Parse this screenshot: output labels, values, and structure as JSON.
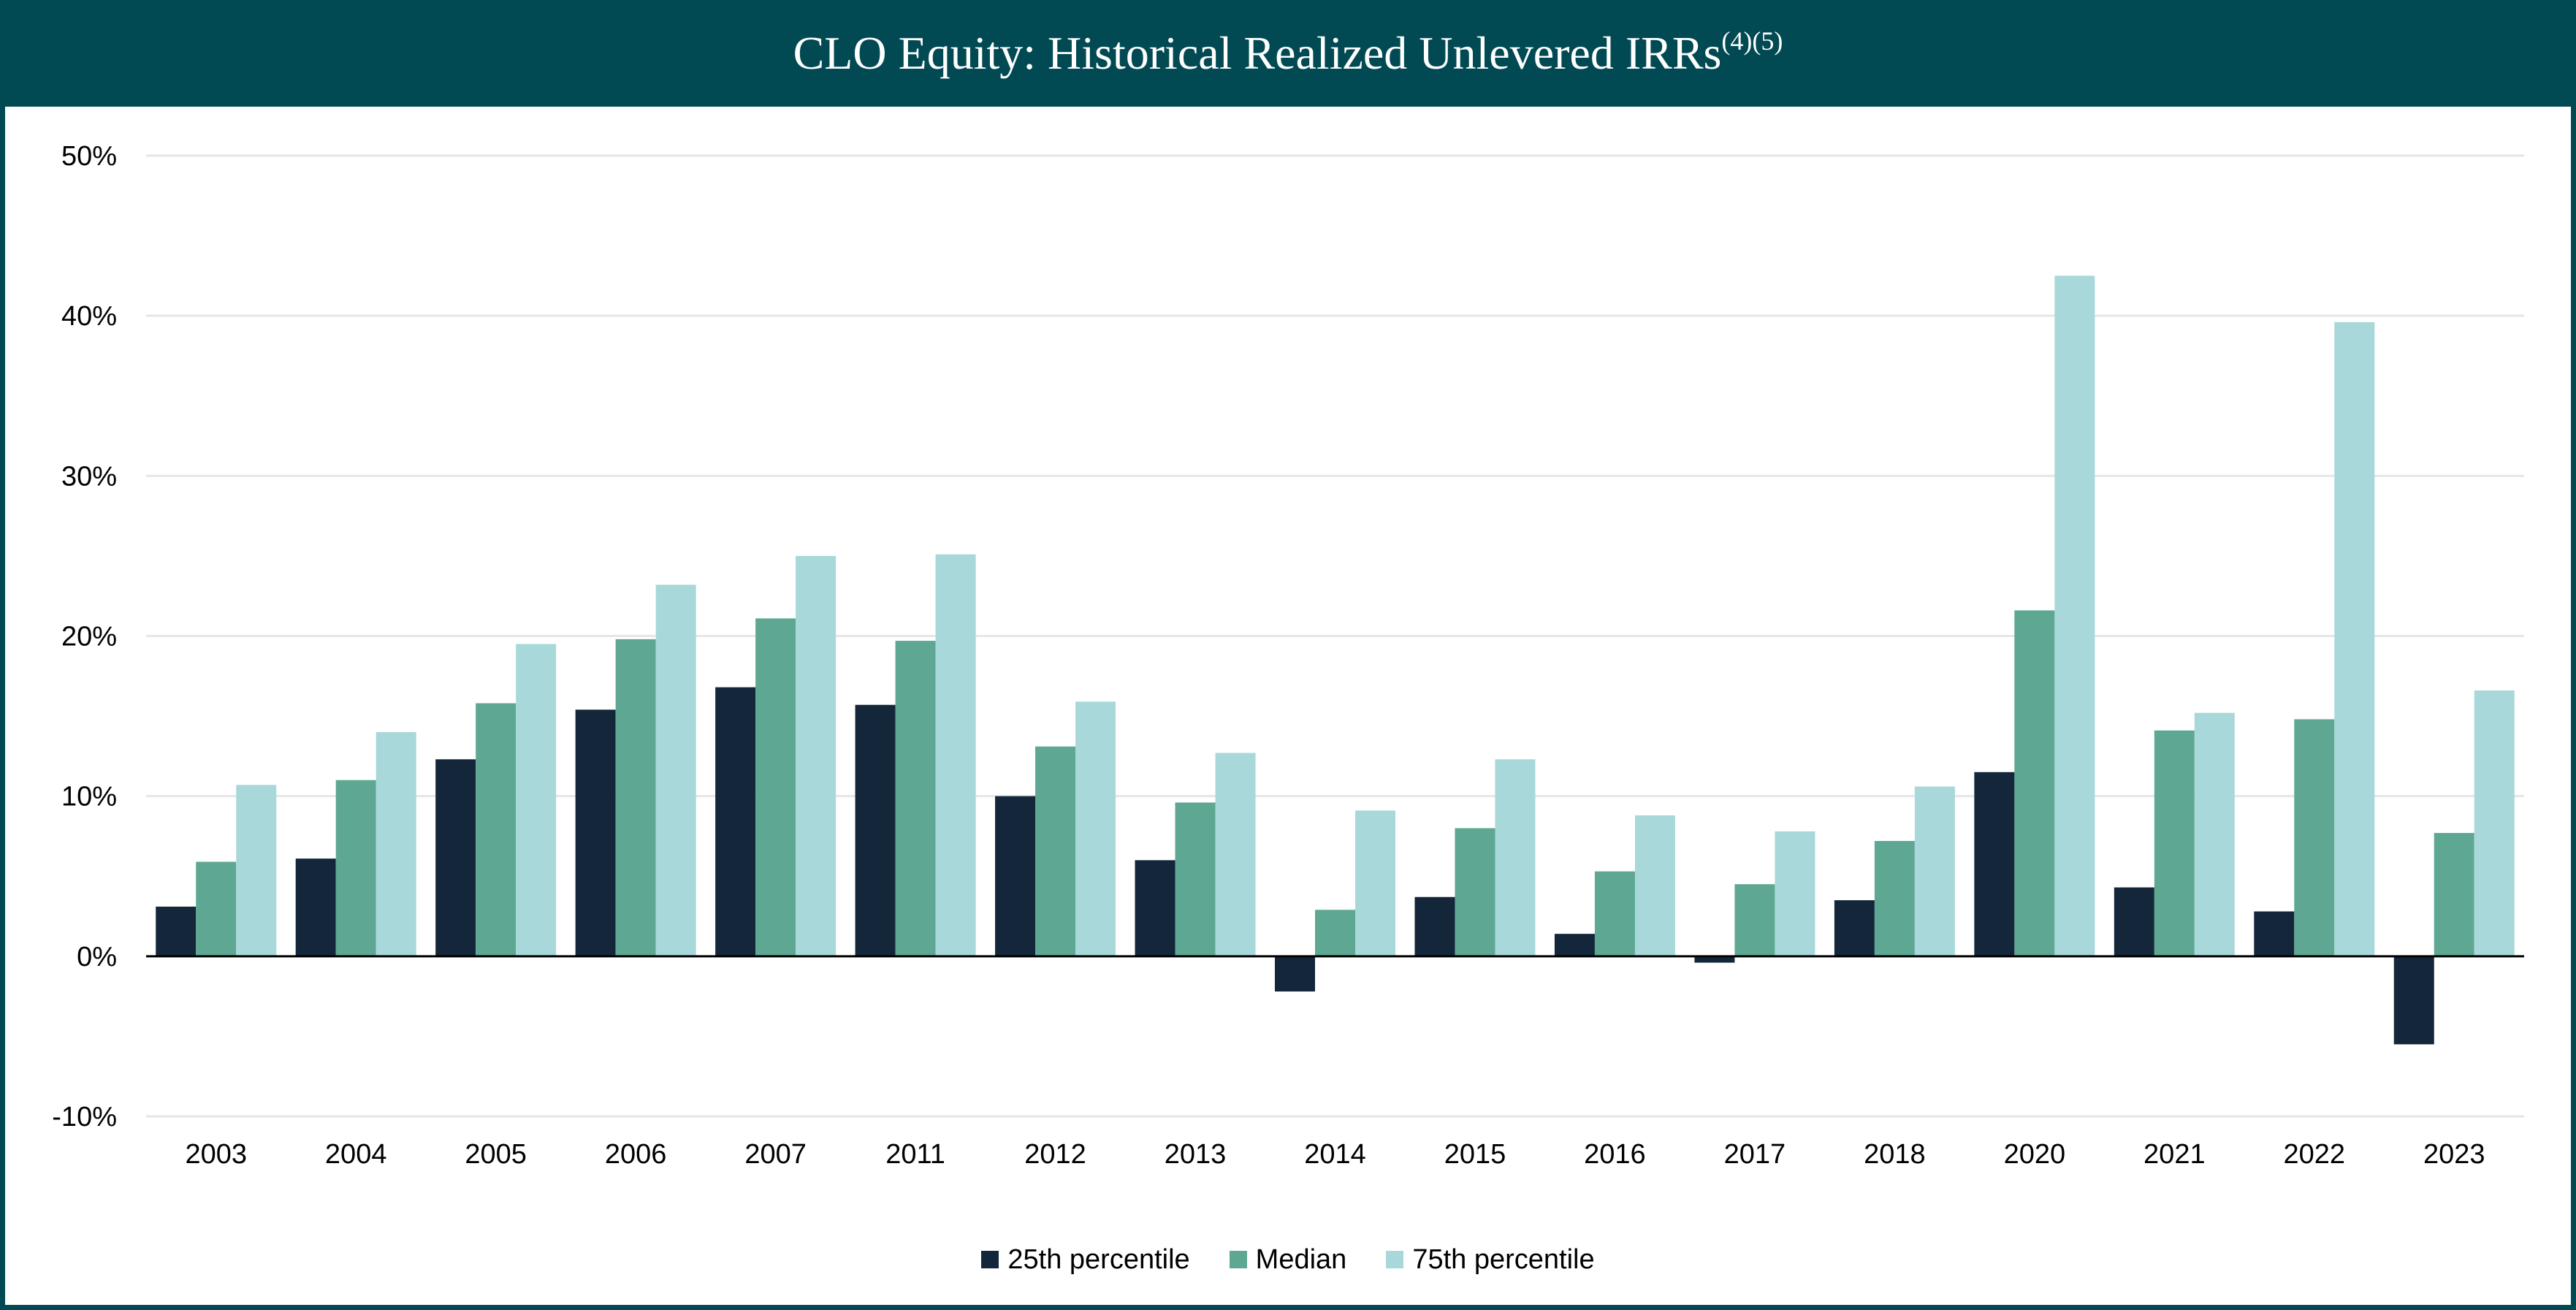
{
  "title": {
    "text": "CLO Equity: Historical Realized Unlevered IRRs",
    "superscript": "(4)(5)"
  },
  "colors": {
    "header_bg": "#024a53",
    "p25": "#13263a",
    "median": "#5ea792",
    "p75": "#a8d8da",
    "grid": "#e6e6e6",
    "axis": "#000000"
  },
  "chart_data": {
    "type": "bar",
    "title": "CLO Equity: Historical Realized Unlevered IRRs(4)(5)",
    "categories": [
      "2003",
      "2004",
      "2005",
      "2006",
      "2007",
      "2011",
      "2012",
      "2013",
      "2014",
      "2015",
      "2016",
      "2017",
      "2018",
      "2020",
      "2021",
      "2022",
      "2023"
    ],
    "series": [
      {
        "name": "25th percentile",
        "values": [
          3.1,
          6.1,
          12.3,
          15.4,
          16.8,
          15.7,
          10.0,
          6.0,
          -2.2,
          3.7,
          1.4,
          -0.4,
          3.5,
          11.5,
          4.3,
          2.8,
          -5.5
        ]
      },
      {
        "name": "Median",
        "values": [
          5.9,
          11.0,
          15.8,
          19.8,
          21.1,
          19.7,
          13.1,
          9.6,
          2.9,
          8.0,
          5.3,
          4.5,
          7.2,
          21.6,
          14.1,
          14.8,
          7.7
        ]
      },
      {
        "name": "75th percentile",
        "values": [
          10.7,
          14.0,
          19.5,
          23.2,
          25.0,
          25.1,
          15.9,
          12.7,
          9.1,
          12.3,
          8.8,
          7.8,
          10.6,
          42.5,
          15.2,
          39.6,
          16.6
        ]
      }
    ],
    "ylim": [
      -10,
      50
    ],
    "yticks": [
      -10,
      0,
      10,
      20,
      30,
      40,
      50
    ],
    "ytick_labels": [
      "-10%",
      "0%",
      "10%",
      "20%",
      "30%",
      "40%",
      "50%"
    ],
    "grid": true,
    "legend_position": "bottom-center"
  }
}
